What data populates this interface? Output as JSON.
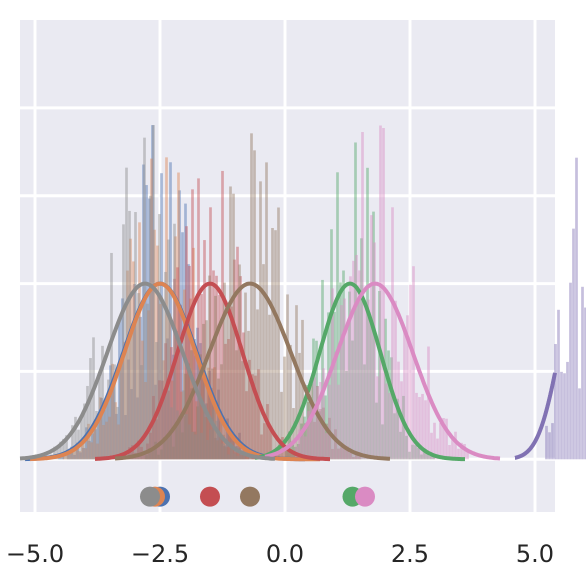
{
  "chart_data": {
    "type": "histogram-kde",
    "title": "",
    "xlabel": "",
    "ylabel": "",
    "xlim": [
      -5.3,
      5.4
    ],
    "ylim": [
      -0.12,
      1.0
    ],
    "grid": true,
    "style": "seaborn-darkgrid",
    "x_ticks": [
      -5.0,
      -2.5,
      0.0,
      2.5,
      5.0
    ],
    "x_tick_labels": [
      "−5.0",
      "−2.5",
      "0.0",
      "2.5",
      "5.0"
    ],
    "y_ticks": [
      0.0,
      0.2,
      0.4,
      0.6,
      0.8
    ],
    "series": [
      {
        "color": "#4c72b0",
        "mean": -2.5,
        "sd": 0.7,
        "range": [
          -4.6,
          -0.2
        ],
        "seed": 11
      },
      {
        "color": "#dd8452",
        "mean": -2.5,
        "sd": 0.68,
        "range": [
          -4.5,
          0.1
        ],
        "seed": 23
      },
      {
        "color": "#55a868",
        "mean": 1.3,
        "sd": 0.58,
        "range": [
          0.0,
          3.0
        ],
        "seed": 37
      },
      {
        "color": "#c44e52",
        "mean": -1.5,
        "sd": 0.62,
        "range": [
          -3.2,
          0.3
        ],
        "seed": 41
      },
      {
        "color": "#8172b3",
        "mean": 5.9,
        "sd": 0.4,
        "range": [
          5.2,
          6.5
        ],
        "seed": 53
      },
      {
        "color": "#937860",
        "mean": -0.7,
        "sd": 0.78,
        "range": [
          -2.8,
          1.5
        ],
        "seed": 61
      },
      {
        "color": "#da8bc3",
        "mean": 1.8,
        "sd": 0.72,
        "range": [
          0.2,
          3.7
        ],
        "seed": 71
      },
      {
        "color": "#8c8c8c",
        "mean": -2.8,
        "sd": 0.72,
        "range": [
          -4.7,
          -0.8
        ],
        "seed": 83
      }
    ],
    "mean_markers": [
      {
        "x": -2.5,
        "color": "#4c72b0"
      },
      {
        "x": -2.6,
        "color": "#dd8452"
      },
      {
        "x": 1.35,
        "color": "#55a868"
      },
      {
        "x": -1.5,
        "color": "#c44e52"
      },
      {
        "x": -0.7,
        "color": "#937860"
      },
      {
        "x": 1.6,
        "color": "#da8bc3"
      },
      {
        "x": -2.7,
        "color": "#8c8c8c"
      }
    ],
    "marker_y": -0.085
  }
}
